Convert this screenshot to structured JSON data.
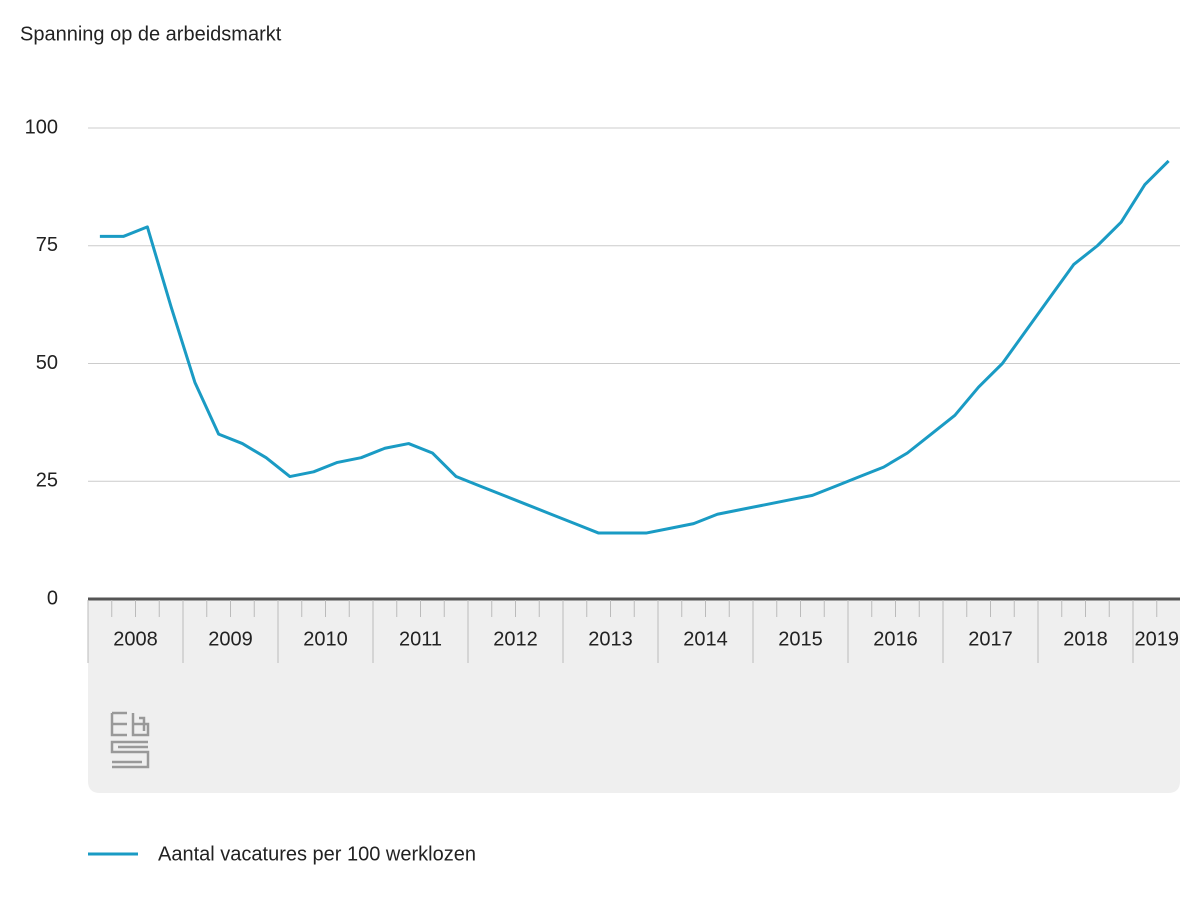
{
  "chart_data": {
    "type": "line",
    "title": "Spanning op de arbeidsmarkt",
    "categories": [
      "2008",
      null,
      null,
      null,
      "2009",
      null,
      null,
      null,
      "2010",
      null,
      null,
      null,
      "2011",
      null,
      null,
      null,
      "2012",
      null,
      null,
      null,
      "2013",
      null,
      null,
      null,
      "2014",
      null,
      null,
      null,
      "2015",
      null,
      null,
      null,
      "2016",
      null,
      null,
      null,
      "2017",
      null,
      null,
      null,
      "2018",
      null,
      null,
      null,
      "2019",
      null
    ],
    "series": [
      {
        "name": "Aantal vacatures per 100 werklozen",
        "color": "#1a9bc4",
        "values": [
          77,
          77,
          79,
          62,
          46,
          35,
          33,
          30,
          26,
          27,
          29,
          30,
          32,
          33,
          31,
          26,
          24,
          22,
          20,
          18,
          16,
          14,
          14,
          14,
          15,
          16,
          18,
          19,
          20,
          21,
          22,
          24,
          26,
          28,
          31,
          35,
          39,
          45,
          50,
          57,
          64,
          71,
          75,
          80,
          88,
          93
        ]
      }
    ],
    "ylim": [
      0,
      100
    ],
    "yticks": [
      0,
      25,
      50,
      75,
      100
    ],
    "grid": true
  }
}
